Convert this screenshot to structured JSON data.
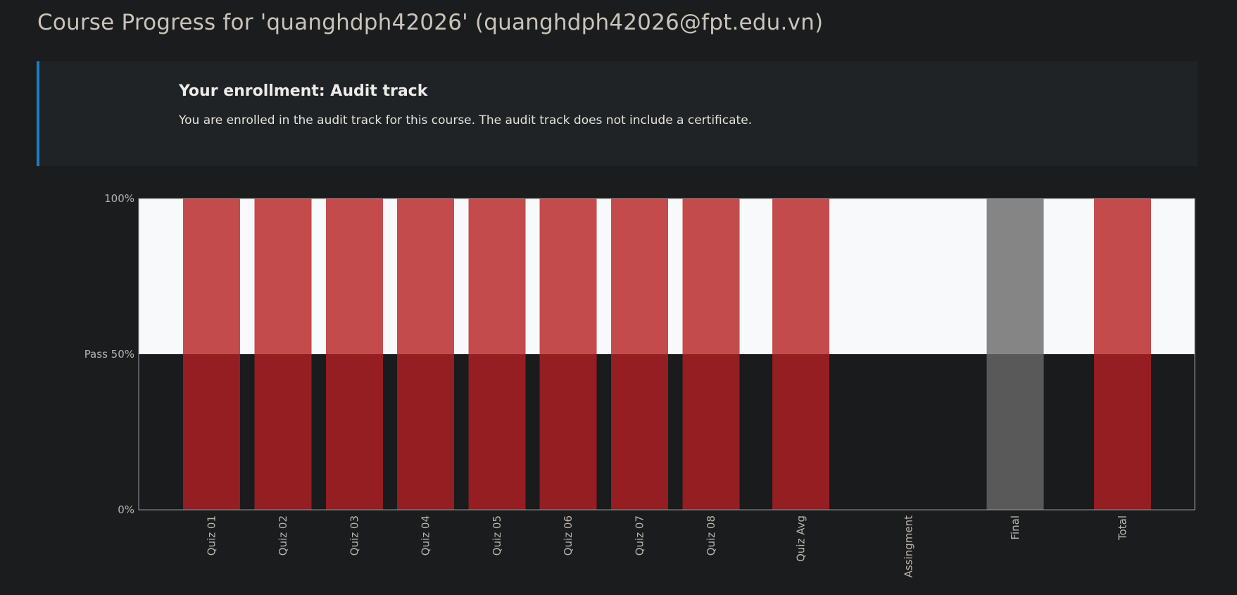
{
  "page": {
    "title": "Course Progress for 'quanghdph42026' (quanghdph42026@fpt.edu.vn)"
  },
  "enrollment": {
    "heading": "Your enrollment: Audit track",
    "message": "You are enrolled in the audit track for this course. The audit track does not include a certificate."
  },
  "colors": {
    "accent_border": "#1a7fbf",
    "bar_fail_above_pass": "#c44b4b",
    "bar_fail_below_pass": "#941e22",
    "bar_unreleased_above_pass": "#858585",
    "bar_unreleased_below_pass": "#595959",
    "plot_above_pass": "#f8f9fb",
    "plot_below_pass": "#1a1b1d"
  },
  "chart_data": {
    "type": "bar",
    "title": "",
    "xlabel": "",
    "ylabel": "",
    "ylim": [
      0,
      100
    ],
    "y_ticks": [
      {
        "value": 100,
        "label": "100%"
      },
      {
        "value": 50,
        "label": "Pass 50%"
      },
      {
        "value": 0,
        "label": "0%"
      }
    ],
    "pass_threshold": 50,
    "grid": false,
    "legend": "none",
    "categories": [
      "Quiz 01",
      "Quiz 02",
      "Quiz 03",
      "Quiz 04",
      "Quiz 05",
      "Quiz 06",
      "Quiz 07",
      "Quiz 08",
      "Quiz Avg",
      "Assingment",
      "Final",
      "Total"
    ],
    "bars": [
      {
        "category": "Quiz 01",
        "shown": true,
        "style": "fail"
      },
      {
        "category": "Quiz 02",
        "shown": true,
        "style": "fail"
      },
      {
        "category": "Quiz 03",
        "shown": true,
        "style": "fail"
      },
      {
        "category": "Quiz 04",
        "shown": true,
        "style": "fail"
      },
      {
        "category": "Quiz 05",
        "shown": true,
        "style": "fail"
      },
      {
        "category": "Quiz 06",
        "shown": true,
        "style": "fail"
      },
      {
        "category": "Quiz 07",
        "shown": true,
        "style": "fail"
      },
      {
        "category": "Quiz 08",
        "shown": true,
        "style": "fail"
      },
      {
        "category": "Quiz Avg",
        "shown": true,
        "style": "fail"
      },
      {
        "category": "Assingment",
        "shown": false,
        "style": "none"
      },
      {
        "category": "Final",
        "shown": true,
        "style": "unreleased"
      },
      {
        "category": "Total",
        "shown": true,
        "style": "fail"
      }
    ]
  }
}
